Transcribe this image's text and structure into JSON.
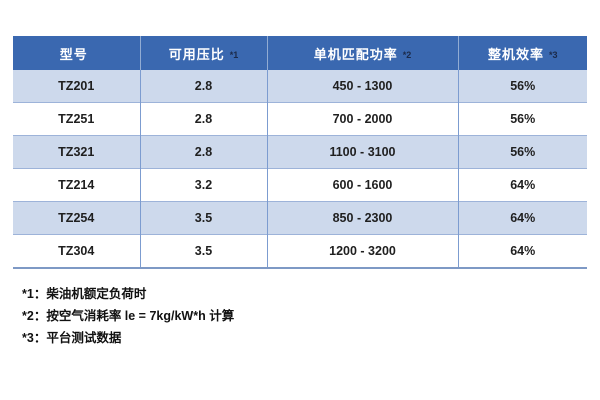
{
  "table": {
    "columns": [
      {
        "label": "型号",
        "marker": ""
      },
      {
        "label": "可用压比",
        "marker": "*1"
      },
      {
        "label": "单机匹配功率",
        "marker": "*2"
      },
      {
        "label": "整机效率",
        "marker": "*3"
      }
    ],
    "rows": [
      {
        "model": "TZ201",
        "pressure_ratio": "2.8",
        "power_range": "450 - 1300",
        "efficiency": "56%"
      },
      {
        "model": "TZ251",
        "pressure_ratio": "2.8",
        "power_range": "700 - 2000",
        "efficiency": "56%"
      },
      {
        "model": "TZ321",
        "pressure_ratio": "2.8",
        "power_range": "1100 - 3100",
        "efficiency": "56%"
      },
      {
        "model": "TZ214",
        "pressure_ratio": "3.2",
        "power_range": "600 - 1600",
        "efficiency": "64%"
      },
      {
        "model": "TZ254",
        "pressure_ratio": "3.5",
        "power_range": "850 - 2300",
        "efficiency": "64%"
      },
      {
        "model": "TZ304",
        "pressure_ratio": "3.5",
        "power_range": "1200 - 3200",
        "efficiency": "64%"
      }
    ]
  },
  "footnotes": [
    "*1：柴油机额定负荷时",
    "*2：按空气消耗率 le = 7kg/kW*h 计算",
    "*3：平台测试数据"
  ],
  "colors": {
    "header-bg": "#3A68B0",
    "header-text": "#FFFFFF",
    "header-marker": "#1B2A4A",
    "stripe-bg": "#CDD9EC",
    "row-bg": "#FFFFFF",
    "row-line": "#9DB3D9",
    "col-line": "#7C9CD0",
    "bottom-line": "#7E99C5",
    "cell-text": "#1F1F1F"
  }
}
